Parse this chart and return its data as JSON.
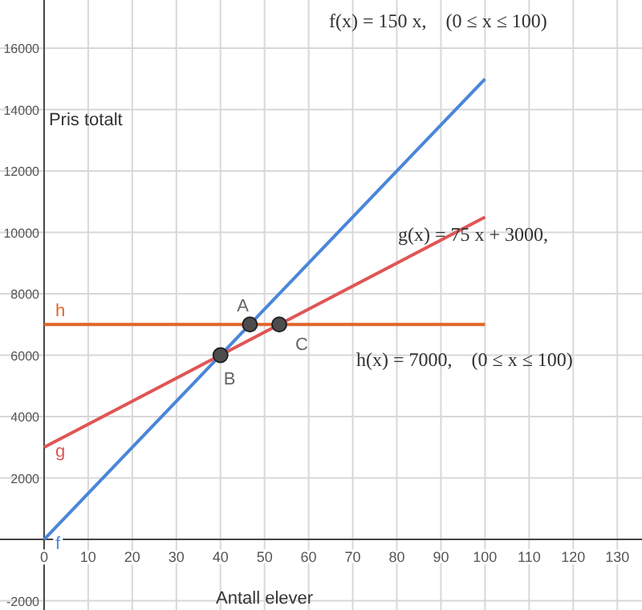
{
  "chart_data": {
    "type": "line",
    "xlabel": "Antall elever",
    "ylabel": "Pris totalt",
    "xlim": [
      -10,
      135.6
    ],
    "ylim": [
      -2300,
      17570
    ],
    "xticks": [
      0,
      10,
      20,
      30,
      40,
      50,
      60,
      70,
      80,
      90,
      100,
      110,
      120,
      130
    ],
    "yticks": [
      -2000,
      2000,
      4000,
      6000,
      8000,
      10000,
      12000,
      14000,
      16000
    ],
    "grid": true,
    "legend": false,
    "marker": "none",
    "line_style": "solid",
    "series": [
      {
        "name": "f",
        "color": "#4a86d8",
        "x": [
          0,
          100
        ],
        "values": [
          0,
          15000
        ]
      },
      {
        "name": "g",
        "color": "#e05555",
        "x": [
          0,
          100
        ],
        "values": [
          3000,
          10500
        ]
      },
      {
        "name": "h",
        "color": "#e0662a",
        "x": [
          0,
          100
        ],
        "values": [
          7000,
          7000
        ]
      },
      {
        "type": "scatter",
        "color": "#4d4d4d",
        "marker": "circle",
        "x": [
          46.67,
          40,
          53.33
        ],
        "values": [
          7000,
          6000,
          7000
        ]
      }
    ],
    "annotations": [
      "f(x) = 150 x,    (0 ≤ x ≤ 100)",
      "g(x) = 75 x + 3000,",
      "h(x) = 7000,    (0 ≤ x ≤ 100)",
      {
        "text": "A",
        "x": 46.67,
        "y": 7000
      },
      {
        "text": "B",
        "x": 40,
        "y": 6000
      },
      {
        "text": "C",
        "x": 53.33,
        "y": 7000
      }
    ]
  }
}
